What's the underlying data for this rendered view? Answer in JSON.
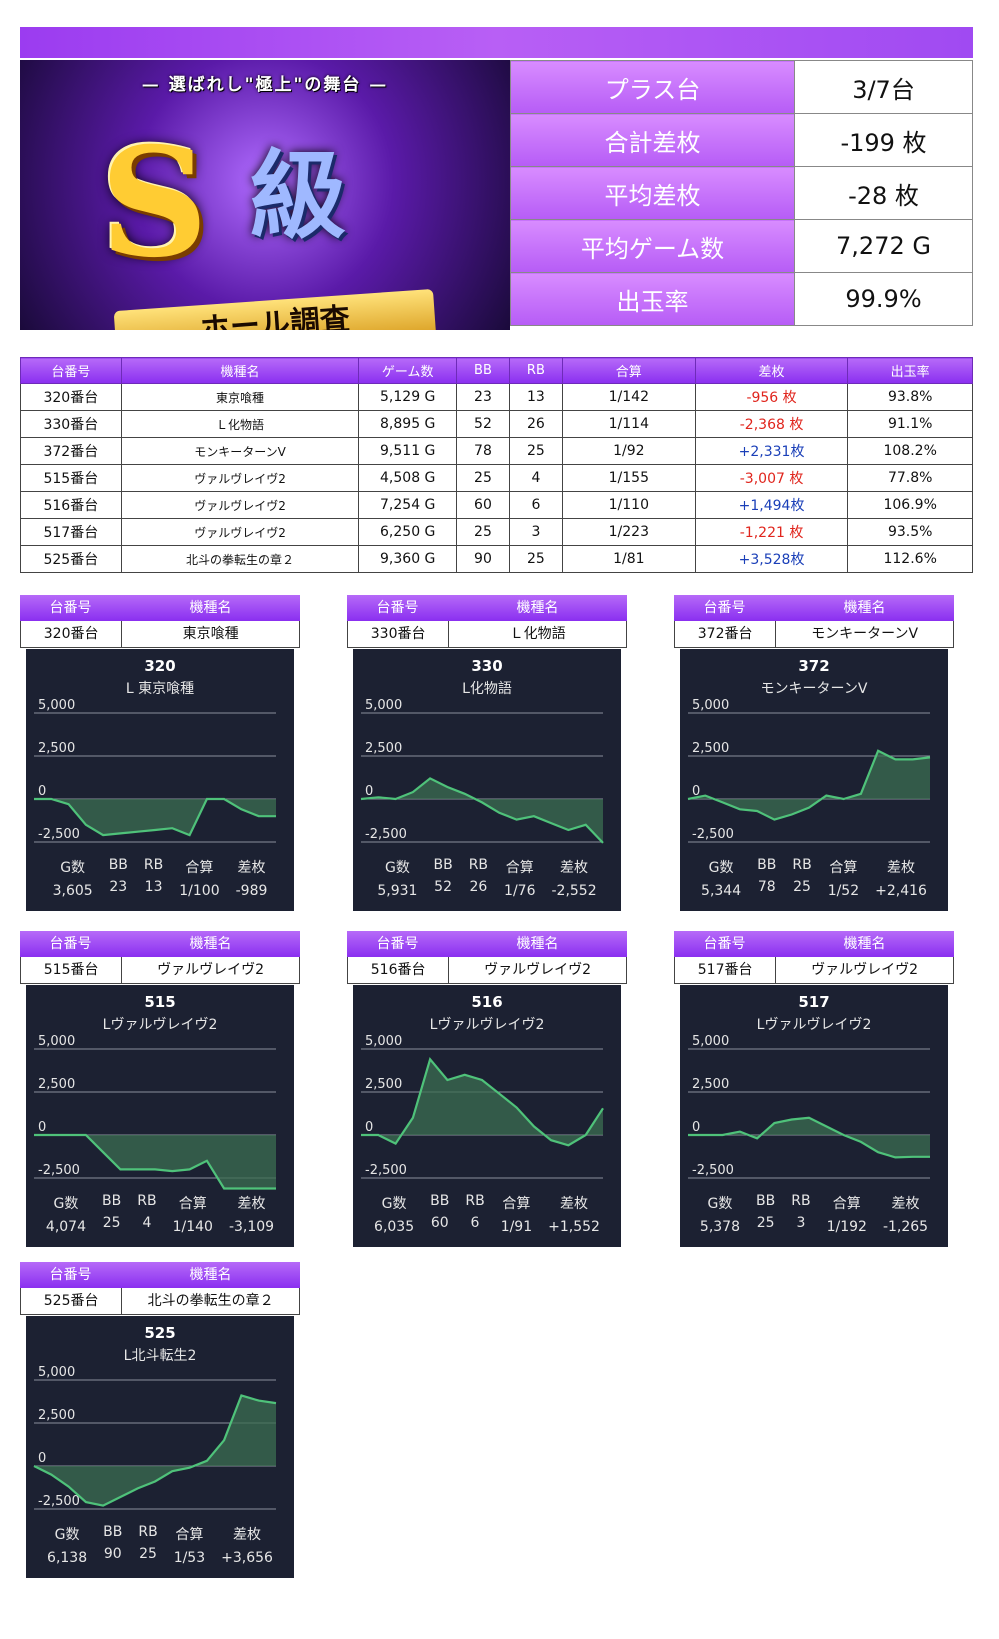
{
  "banner": {
    "subtitle": "— 選ばれし\"極上\"の舞台 —",
    "logo_s": "S",
    "logo_kyu": "級",
    "ribbon": "ホール調査"
  },
  "summary": [
    {
      "label": "プラス台",
      "value": "3/7台"
    },
    {
      "label": "合計差枚",
      "value": "-199 枚"
    },
    {
      "label": "平均差枚",
      "value": "-28 枚"
    },
    {
      "label": "平均ゲーム数",
      "value": "7,272 G"
    },
    {
      "label": "出玉率",
      "value": "99.9%"
    }
  ],
  "table": {
    "headers": [
      "台番号",
      "機種名",
      "ゲーム数",
      "BB",
      "RB",
      "合算",
      "差枚",
      "出玉率"
    ],
    "rows": [
      [
        "320番台",
        "東京喰種",
        "5,129 G",
        "23",
        "13",
        "1/142",
        "-956 枚",
        "93.8%"
      ],
      [
        "330番台",
        "Ｌ化物語",
        "8,895 G",
        "52",
        "26",
        "1/114",
        "-2,368 枚",
        "91.1%"
      ],
      [
        "372番台",
        "モンキーターンV",
        "9,511 G",
        "78",
        "25",
        "1/92",
        "+2,331枚",
        "108.2%"
      ],
      [
        "515番台",
        "ヴァルヴレイヴ2",
        "4,508 G",
        "25",
        "4",
        "1/155",
        "-3,007 枚",
        "77.8%"
      ],
      [
        "516番台",
        "ヴァルヴレイヴ2",
        "7,254 G",
        "60",
        "6",
        "1/110",
        "+1,494枚",
        "106.9%"
      ],
      [
        "517番台",
        "ヴァルヴレイヴ2",
        "6,250 G",
        "25",
        "3",
        "1/223",
        "-1,221 枚",
        "93.5%"
      ],
      [
        "525番台",
        "北斗の拳転生の章２",
        "9,360 G",
        "90",
        "25",
        "1/81",
        "+3,528枚",
        "112.6%"
      ]
    ]
  },
  "cards": [
    {
      "hdr1": "台番号",
      "hdr2": "機種名",
      "no": "320番台",
      "name": "東京喰種",
      "gid": "320",
      "gname": "L 東京喰種",
      "stats_labels": [
        "G数",
        "BB",
        "RB",
        "合算",
        "差枚"
      ],
      "stats": [
        "3,605",
        "23",
        "13",
        "1/100",
        "-989"
      ]
    },
    {
      "hdr1": "台番号",
      "hdr2": "機種名",
      "no": "330番台",
      "name": "Ｌ化物語",
      "gid": "330",
      "gname": "L化物語",
      "stats_labels": [
        "G数",
        "BB",
        "RB",
        "合算",
        "差枚"
      ],
      "stats": [
        "5,931",
        "52",
        "26",
        "1/76",
        "-2,552"
      ]
    },
    {
      "hdr1": "台番号",
      "hdr2": "機種名",
      "no": "372番台",
      "name": "モンキーターンV",
      "gid": "372",
      "gname": "モンキーターンV",
      "stats_labels": [
        "G数",
        "BB",
        "RB",
        "合算",
        "差枚"
      ],
      "stats": [
        "5,344",
        "78",
        "25",
        "1/52",
        "+2,416"
      ]
    },
    {
      "hdr1": "台番号",
      "hdr2": "機種名",
      "no": "515番台",
      "name": "ヴァルヴレイヴ2",
      "gid": "515",
      "gname": "Lヴァルヴレイヴ2",
      "stats_labels": [
        "G数",
        "BB",
        "RB",
        "合算",
        "差枚"
      ],
      "stats": [
        "4,074",
        "25",
        "4",
        "1/140",
        "-3,109"
      ]
    },
    {
      "hdr1": "台番号",
      "hdr2": "機種名",
      "no": "516番台",
      "name": "ヴァルヴレイヴ2",
      "gid": "516",
      "gname": "Lヴァルヴレイヴ2",
      "stats_labels": [
        "G数",
        "BB",
        "RB",
        "合算",
        "差枚"
      ],
      "stats": [
        "6,035",
        "60",
        "6",
        "1/91",
        "+1,552"
      ]
    },
    {
      "hdr1": "台番号",
      "hdr2": "機種名",
      "no": "517番台",
      "name": "ヴァルヴレイヴ2",
      "gid": "517",
      "gname": "Lヴァルヴレイヴ2",
      "stats_labels": [
        "G数",
        "BB",
        "RB",
        "合算",
        "差枚"
      ],
      "stats": [
        "5,378",
        "25",
        "3",
        "1/192",
        "-1,265"
      ]
    },
    {
      "hdr1": "台番号",
      "hdr2": "機種名",
      "no": "525番台",
      "name": "北斗の拳転生の章２",
      "gid": "525",
      "gname": "L北斗転生2",
      "stats_labels": [
        "G数",
        "BB",
        "RB",
        "合算",
        "差枚"
      ],
      "stats": [
        "6,138",
        "90",
        "25",
        "1/53",
        "+3,656"
      ]
    }
  ],
  "chart_data": [
    {
      "type": "area",
      "id": "320",
      "ytick_labels": [
        "5,000",
        "2,500",
        "0",
        "-2,500"
      ],
      "yticks": [
        5000,
        2500,
        0,
        -2500
      ],
      "ylim": [
        -2500,
        5000
      ],
      "y": [
        0,
        0,
        -300,
        -1500,
        -2100,
        -2000,
        -1900,
        -1800,
        -1700,
        -2100,
        0,
        0,
        -600,
        -1000,
        -1000
      ]
    },
    {
      "type": "area",
      "id": "330",
      "ytick_labels": [
        "5,000",
        "2,500",
        "0",
        "-2,500"
      ],
      "yticks": [
        5000,
        2500,
        0,
        -2500
      ],
      "ylim": [
        -2500,
        5000
      ],
      "y": [
        0,
        100,
        0,
        400,
        1200,
        700,
        300,
        -200,
        -800,
        -1200,
        -1000,
        -1400,
        -1800,
        -1500,
        -2552
      ]
    },
    {
      "type": "area",
      "id": "372",
      "ytick_labels": [
        "5,000",
        "2,500",
        "0",
        "-2,500"
      ],
      "yticks": [
        5000,
        2500,
        0,
        -2500
      ],
      "ylim": [
        -2500,
        5000
      ],
      "y": [
        0,
        200,
        -200,
        -600,
        -700,
        -1200,
        -900,
        -500,
        200,
        0,
        300,
        2800,
        2300,
        2300,
        2416
      ]
    },
    {
      "type": "area",
      "id": "515",
      "ytick_labels": [
        "5,000",
        "2,500",
        "0",
        "-2,500"
      ],
      "yticks": [
        5000,
        2500,
        0,
        -2500
      ],
      "ylim": [
        -2500,
        5000
      ],
      "y": [
        0,
        0,
        0,
        0,
        -1000,
        -2000,
        -2000,
        -2000,
        -2100,
        -2000,
        -1500,
        -3109,
        -3109,
        -3109,
        -3109
      ]
    },
    {
      "type": "area",
      "id": "516",
      "ytick_labels": [
        "5,000",
        "2,500",
        "0",
        "-2,500"
      ],
      "yticks": [
        5000,
        2500,
        0,
        -2500
      ],
      "ylim": [
        -2500,
        5000
      ],
      "y": [
        0,
        0,
        -500,
        1000,
        4400,
        3200,
        3500,
        3200,
        2400,
        1600,
        500,
        -300,
        -600,
        0,
        1552
      ]
    },
    {
      "type": "area",
      "id": "517",
      "ytick_labels": [
        "5,000",
        "2,500",
        "0",
        "-2,500"
      ],
      "yticks": [
        5000,
        2500,
        0,
        -2500
      ],
      "ylim": [
        -2500,
        5000
      ],
      "y": [
        0,
        0,
        0,
        200,
        -200,
        700,
        900,
        1000,
        500,
        0,
        -400,
        -1000,
        -1300,
        -1265,
        -1265
      ]
    },
    {
      "type": "area",
      "id": "525",
      "ytick_labels": [
        "5,000",
        "2,500",
        "0",
        "-2,500"
      ],
      "yticks": [
        5000,
        2500,
        0,
        -2500
      ],
      "ylim": [
        -2500,
        5000
      ],
      "y": [
        0,
        -500,
        -1200,
        -2100,
        -2300,
        -1800,
        -1300,
        -900,
        -300,
        -100,
        300,
        1500,
        4100,
        3800,
        3656
      ]
    }
  ],
  "colors": {
    "neg": "#e0251d",
    "pos": "#1a3fb8",
    "line": "#4fc27a",
    "fill": "#3b6d52"
  }
}
